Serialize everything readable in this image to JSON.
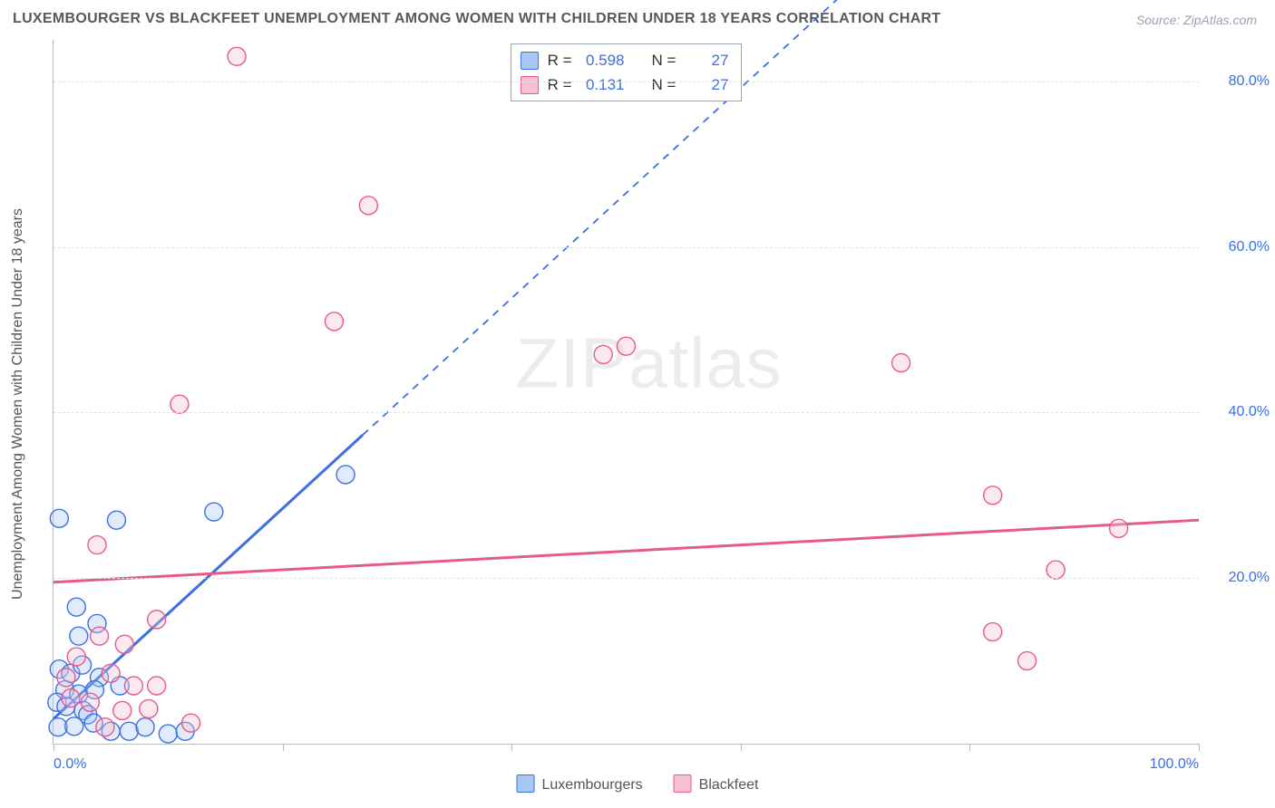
{
  "title": "LUXEMBOURGER VS BLACKFEET UNEMPLOYMENT AMONG WOMEN WITH CHILDREN UNDER 18 YEARS CORRELATION CHART",
  "title_fontsize": 16,
  "title_color": "#585858",
  "source_text": "Source: ZipAtlas.com",
  "y_axis_label": "Unemployment Among Women with Children Under 18 years",
  "watermark_text_bold": "ZIP",
  "watermark_text_thin": "atlas",
  "background_color": "#ffffff",
  "axis_color": "#b9bcc5",
  "grid_color": "#dfe2e6",
  "tick_label_color": "#3b6fe2",
  "chart": {
    "type": "scatter",
    "xlim": [
      0,
      100
    ],
    "ylim": [
      0,
      85
    ],
    "y_gridlines": [
      20,
      40,
      60,
      80
    ],
    "y_tick_labels": [
      "20.0%",
      "40.0%",
      "60.0%",
      "80.0%"
    ],
    "x_ticks_major": [
      0,
      20,
      40,
      60,
      80,
      100
    ],
    "x_tick_labels": {
      "0": "0.0%",
      "100": "100.0%"
    },
    "marker_radius": 10,
    "marker_fill_opacity": 0.35,
    "marker_stroke_width": 1.4,
    "series": [
      {
        "id": "luxembourgers",
        "label": "Luxembourgers",
        "color_stroke": "#3b6fe2",
        "color_fill": "#a9c7f3",
        "r_value": "0.598",
        "n_value": "27",
        "trend": {
          "y_at_x0": 3,
          "y_at_x100": 130,
          "solid_until_x": 27,
          "stroke_width": 3,
          "dash": "8 7"
        },
        "points": [
          [
            0.5,
            27.2
          ],
          [
            5.5,
            27.0
          ],
          [
            14.0,
            28.0
          ],
          [
            25.5,
            32.5
          ],
          [
            2.0,
            16.5
          ],
          [
            3.8,
            14.5
          ],
          [
            2.2,
            13.0
          ],
          [
            0.5,
            9.0
          ],
          [
            1.5,
            8.5
          ],
          [
            2.5,
            9.5
          ],
          [
            4.0,
            8.0
          ],
          [
            1.0,
            6.5
          ],
          [
            2.2,
            6.0
          ],
          [
            3.6,
            6.5
          ],
          [
            5.8,
            7.0
          ],
          [
            0.3,
            5.0
          ],
          [
            1.1,
            4.5
          ],
          [
            2.6,
            4.0
          ],
          [
            3.0,
            3.5
          ],
          [
            0.4,
            2.0
          ],
          [
            1.8,
            2.1
          ],
          [
            3.5,
            2.5
          ],
          [
            5.0,
            1.5
          ],
          [
            6.6,
            1.5
          ],
          [
            8.0,
            2.0
          ],
          [
            10.0,
            1.2
          ],
          [
            11.5,
            1.5
          ]
        ]
      },
      {
        "id": "blackfeet",
        "label": "Blackfeet",
        "color_stroke": "#e65a88",
        "color_fill": "#f7bfd1",
        "r_value": "0.131",
        "n_value": "27",
        "trend": {
          "y_at_x0": 19.5,
          "y_at_x100": 27,
          "solid_until_x": 100,
          "stroke_width": 3,
          "dash": ""
        },
        "points": [
          [
            16.0,
            83.0
          ],
          [
            27.5,
            65.0
          ],
          [
            24.5,
            51.0
          ],
          [
            50.0,
            48.0
          ],
          [
            48.0,
            47.0
          ],
          [
            74.0,
            46.0
          ],
          [
            11.0,
            41.0
          ],
          [
            82.0,
            30.0
          ],
          [
            93.0,
            26.0
          ],
          [
            3.8,
            24.0
          ],
          [
            87.5,
            21.0
          ],
          [
            9.0,
            15.0
          ],
          [
            82.0,
            13.5
          ],
          [
            4.0,
            13.0
          ],
          [
            6.2,
            12.0
          ],
          [
            2.0,
            10.5
          ],
          [
            85.0,
            10.0
          ],
          [
            1.1,
            8.0
          ],
          [
            5.0,
            8.5
          ],
          [
            7.0,
            7.0
          ],
          [
            9.0,
            7.0
          ],
          [
            1.5,
            5.5
          ],
          [
            3.2,
            5.0
          ],
          [
            6.0,
            4.0
          ],
          [
            8.3,
            4.2
          ],
          [
            12.0,
            2.5
          ],
          [
            4.5,
            2.0
          ]
        ]
      }
    ]
  },
  "stat_legend_labels": {
    "r_prefix": "R =",
    "n_prefix": "N ="
  },
  "series_legend_labels": [
    "Luxembourgers",
    "Blackfeet"
  ]
}
